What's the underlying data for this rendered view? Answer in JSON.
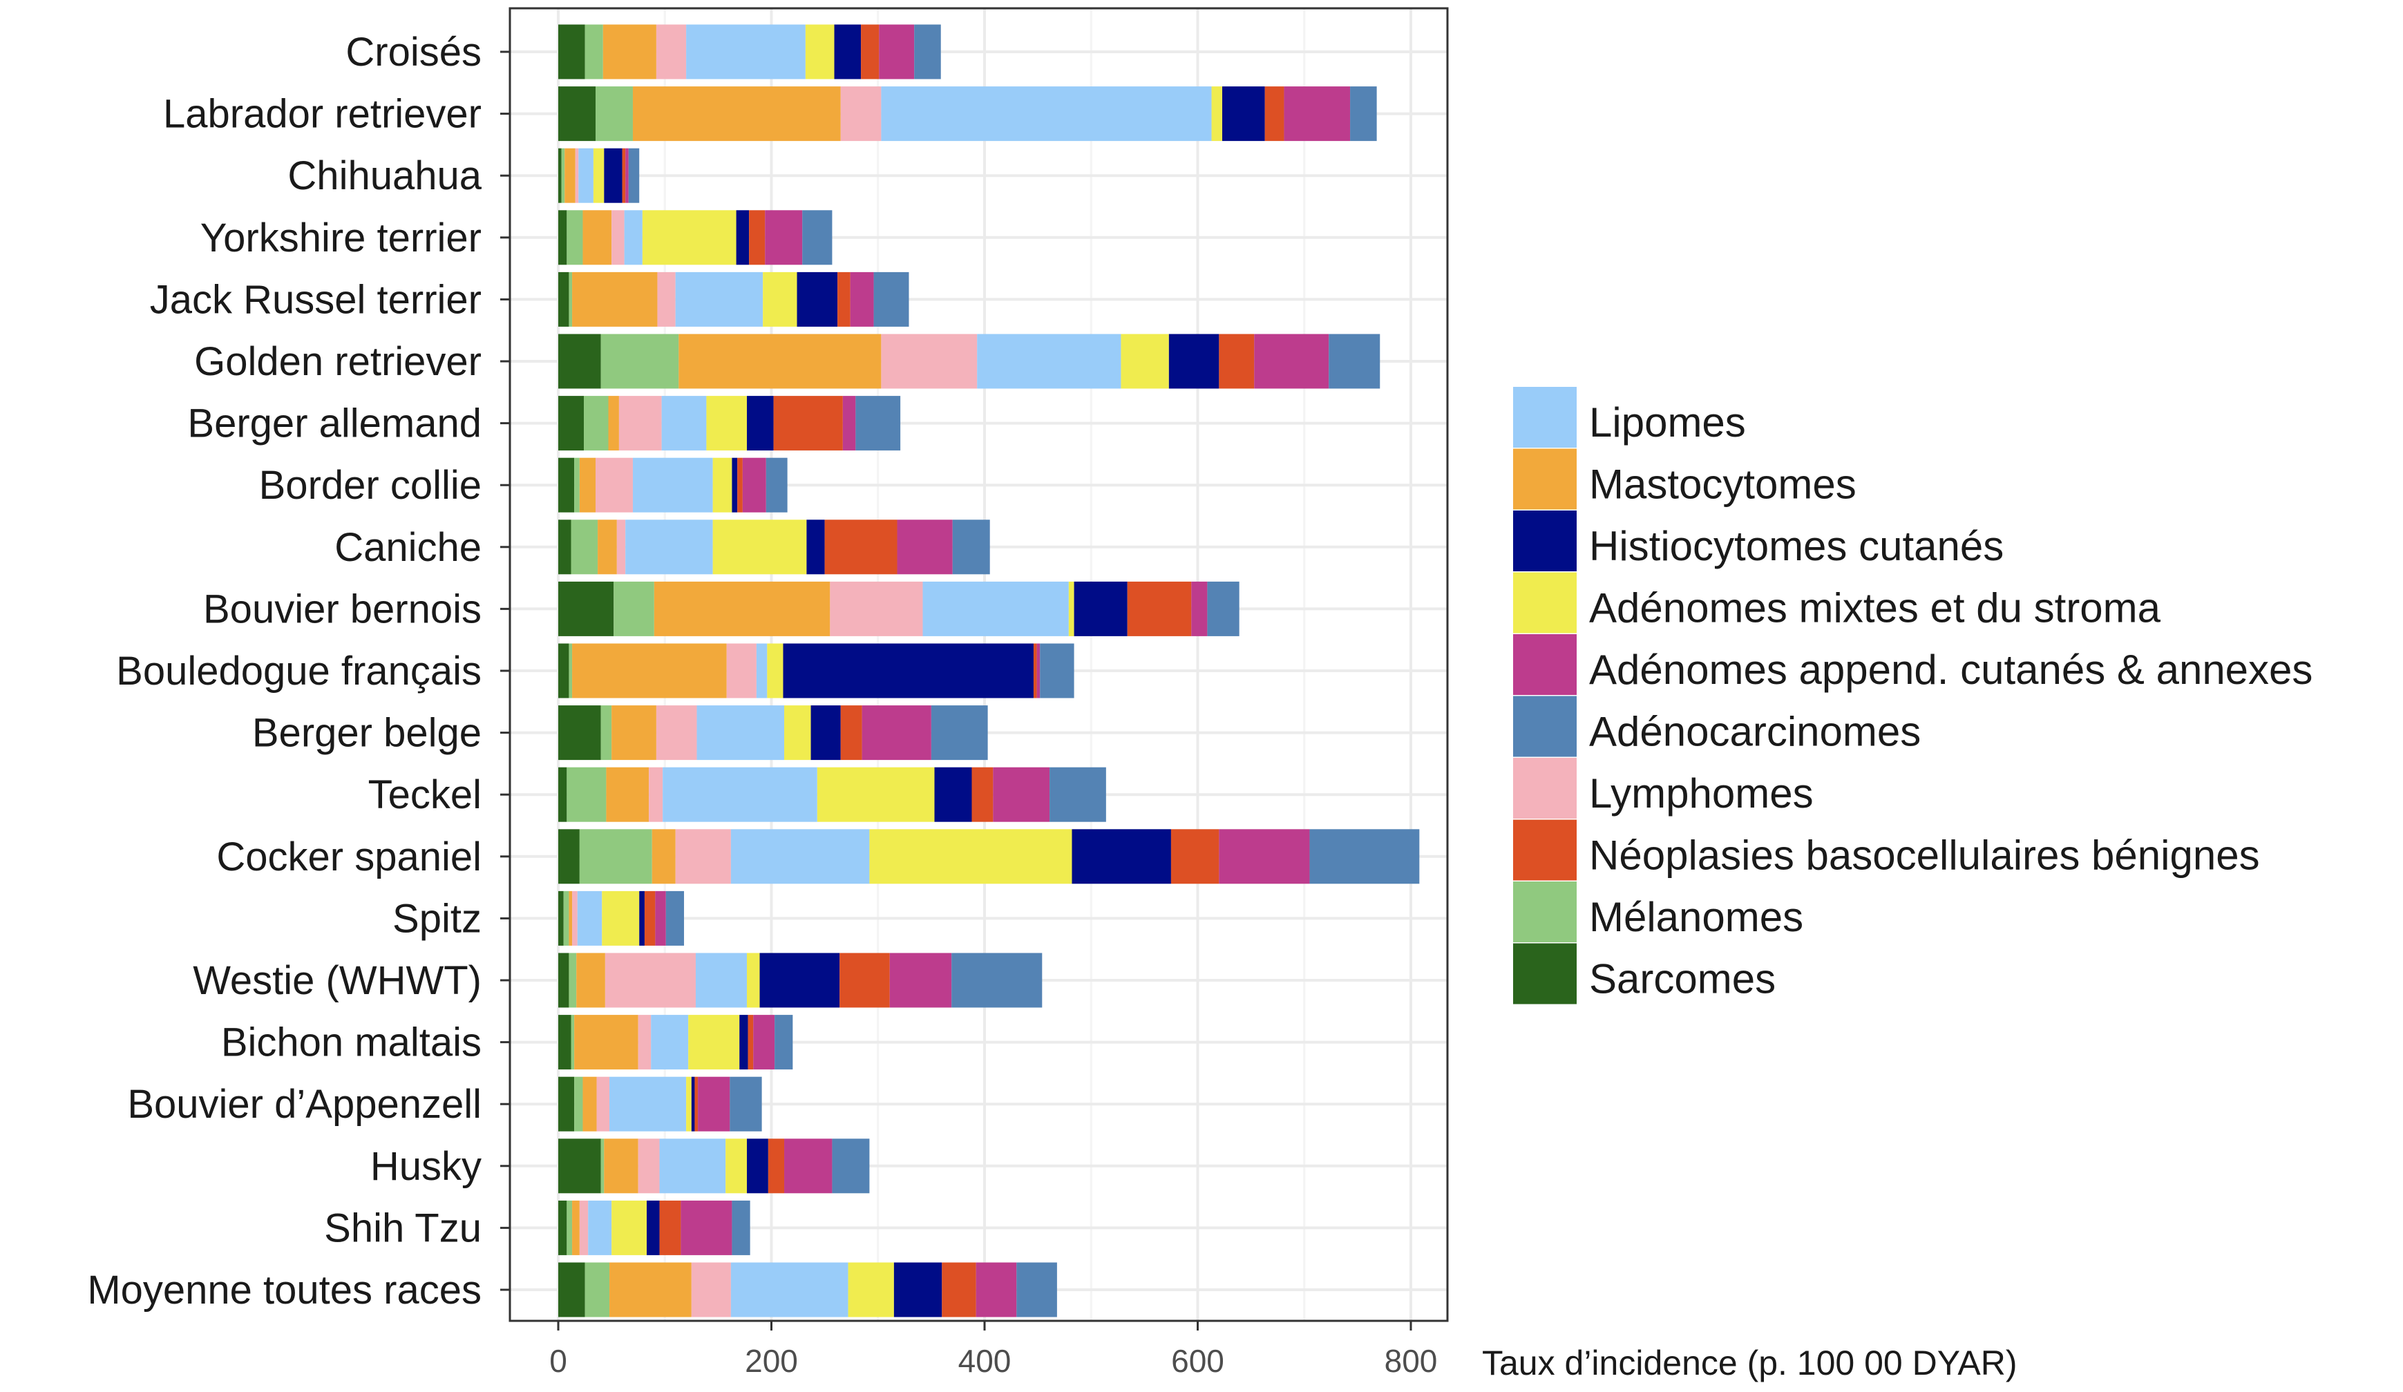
{
  "chart_data": {
    "type": "bar",
    "orientation": "horizontal",
    "stacked": true,
    "title": "",
    "xlabel": "Taux d’incidence (p. 100 00 DYAR)",
    "ylabel": "",
    "xlim": [
      -45,
      855
    ],
    "xticks": [
      0,
      200,
      400,
      600,
      800
    ],
    "grid": true,
    "legend_position": "right",
    "categories": [
      "Croisés",
      "Labrador retriever",
      "Chihuahua",
      "Yorkshire terrier",
      "Jack Russel terrier",
      "Golden retriever",
      "Berger allemand",
      "Border collie",
      "Caniche",
      "Bouvier bernois",
      "Bouledogue français",
      "Berger belge",
      "Teckel",
      "Cocker spaniel",
      "Spitz",
      "Westie (WHWT)",
      "Bichon maltais",
      "Bouvier d’Appenzell",
      "Husky",
      "Shih Tzu",
      "Moyenne toutes races"
    ],
    "series": [
      {
        "name": "Sarcomes",
        "color": "#2a641c",
        "values": [
          25,
          35,
          3,
          8,
          10,
          40,
          24,
          15,
          12,
          52,
          10,
          40,
          8,
          20,
          5,
          10,
          12,
          15,
          40,
          8,
          25
        ]
      },
      {
        "name": "Mélanomes",
        "color": "#90c97f",
        "values": [
          17,
          35,
          3,
          15,
          3,
          73,
          23,
          5,
          25,
          38,
          3,
          10,
          37,
          68,
          5,
          7,
          3,
          8,
          3,
          5,
          23
        ]
      },
      {
        "name": "Mastocytomes",
        "color": "#f2a93b",
        "values": [
          50,
          195,
          10,
          27,
          80,
          190,
          10,
          15,
          18,
          165,
          145,
          42,
          40,
          22,
          3,
          27,
          60,
          13,
          32,
          7,
          77
        ]
      },
      {
        "name": "Lymphomes",
        "color": "#f4b2bb",
        "values": [
          28,
          38,
          3,
          12,
          17,
          90,
          40,
          35,
          8,
          87,
          28,
          38,
          13,
          52,
          5,
          85,
          12,
          12,
          20,
          8,
          37
        ]
      },
      {
        "name": "Lipomes",
        "color": "#99ccf9",
        "values": [
          112,
          310,
          14,
          17,
          82,
          135,
          42,
          75,
          82,
          137,
          10,
          82,
          145,
          130,
          23,
          48,
          35,
          72,
          62,
          22,
          110
        ]
      },
      {
        "name": "Adénomes mixtes et du stroma",
        "color": "#f0ec4f",
        "values": [
          27,
          10,
          10,
          88,
          32,
          45,
          38,
          18,
          88,
          5,
          15,
          25,
          110,
          190,
          35,
          12,
          48,
          5,
          20,
          33,
          43
        ]
      },
      {
        "name": "Histiocytomes cutanés",
        "color": "#000c87",
        "values": [
          25,
          40,
          17,
          12,
          38,
          47,
          25,
          5,
          17,
          50,
          235,
          28,
          35,
          93,
          5,
          75,
          8,
          3,
          20,
          12,
          45
        ]
      },
      {
        "name": "Néoplasies basocellulaires bénignes",
        "color": "#dd5024",
        "values": [
          17,
          18,
          3,
          15,
          12,
          33,
          65,
          5,
          68,
          60,
          3,
          20,
          20,
          45,
          10,
          47,
          5,
          3,
          15,
          20,
          32
        ]
      },
      {
        "name": "Adénomes append. cutanés & annexes",
        "color": "#bd3c8d",
        "values": [
          33,
          62,
          3,
          35,
          22,
          70,
          12,
          22,
          52,
          15,
          3,
          65,
          53,
          85,
          10,
          58,
          20,
          30,
          45,
          48,
          38
        ]
      },
      {
        "name": "Adénocarcinomes",
        "color": "#5483b4",
        "values": [
          25,
          25,
          10,
          28,
          33,
          48,
          42,
          20,
          35,
          30,
          32,
          53,
          53,
          103,
          17,
          85,
          17,
          30,
          35,
          17,
          38
        ]
      }
    ]
  },
  "legend": {
    "items": [
      {
        "label": "Lipomes",
        "color": "#99ccf9"
      },
      {
        "label": "Mastocytomes",
        "color": "#f2a93b"
      },
      {
        "label": "Histiocytomes cutanés",
        "color": "#000c87"
      },
      {
        "label": "Adénomes mixtes et du stroma",
        "color": "#f0ec4f"
      },
      {
        "label": "Adénomes append. cutanés & annexes",
        "color": "#bd3c8d"
      },
      {
        "label": "Adénocarcinomes",
        "color": "#5483b4"
      },
      {
        "label": "Lymphomes",
        "color": "#f4b2bb"
      },
      {
        "label": "Néoplasies basocellulaires bénignes",
        "color": "#dd5024"
      },
      {
        "label": "Mélanomes",
        "color": "#90c97f"
      },
      {
        "label": "Sarcomes",
        "color": "#2a641c"
      }
    ]
  }
}
